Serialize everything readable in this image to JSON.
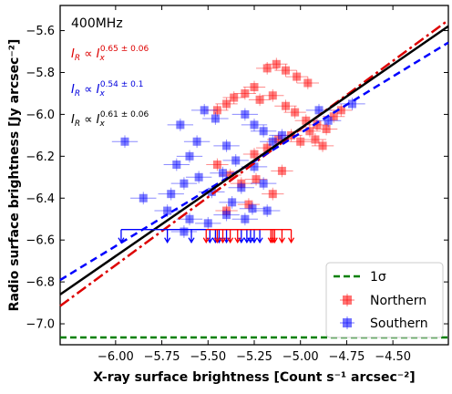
{
  "chart_data": {
    "type": "scatter",
    "xlabel": "X-ray surface brightness [Count s⁻¹ arcsec⁻²]",
    "ylabel": "Radio surface brightness [Jy arcsec⁻²]",
    "xlim": [
      -6.3,
      -4.2
    ],
    "ylim": [
      -7.1,
      -5.48
    ],
    "xticks": [
      -6.0,
      -5.75,
      -5.5,
      -5.25,
      -5.0,
      -4.75,
      -4.5
    ],
    "xtick_labels": [
      "−6.00",
      "−5.75",
      "−5.50",
      "−5.25",
      "−5.00",
      "−4.75",
      "−4.50"
    ],
    "yticks": [
      -7.0,
      -6.8,
      -6.6,
      -6.4,
      -6.2,
      -6.0,
      -5.8,
      -5.6
    ],
    "ytick_labels": [
      "−7.0",
      "−6.8",
      "−6.6",
      "−6.4",
      "−6.2",
      "−6.0",
      "−5.8",
      "−5.6"
    ],
    "annotations": {
      "frequency": "400MHz",
      "northern_fit": {
        "base": "I",
        "sub": "R",
        "rel": " ∝ ",
        "base2": "I",
        "sub2": "x",
        "sup": "0.65 ± 0.06",
        "color": "#dd0000"
      },
      "southern_fit": {
        "base": "I",
        "sub": "R",
        "rel": " ∝ ",
        "base2": "I",
        "sub2": "x",
        "sup": "0.54 ± 0.1",
        "color": "#0000dd"
      },
      "combined_fit": {
        "base": "I",
        "sub": "R",
        "rel": " ∝ ",
        "base2": "I",
        "sub2": "x",
        "sup": "0.61 ± 0.06",
        "color": "#000000"
      }
    },
    "legend": {
      "placement": "lower-right",
      "entries": [
        {
          "label": "1σ",
          "color": "#008000",
          "style": "dashed-line"
        },
        {
          "label": "Northern",
          "color": "#ff0000",
          "style": "marker"
        },
        {
          "label": "Southern",
          "color": "#0000ff",
          "style": "marker"
        }
      ]
    },
    "sigma_level": -7.065,
    "fits": [
      {
        "name": "northern",
        "color": "#dd0000",
        "dash": "dashdot",
        "slope": 0.65,
        "intercept": -2.82
      },
      {
        "name": "southern",
        "color": "#0000ff",
        "dash": "dashed",
        "slope": 0.54,
        "intercept": -3.389
      },
      {
        "name": "combined",
        "color": "#000000",
        "dash": "solid",
        "slope": 0.61,
        "intercept": -3.017
      }
    ],
    "upper_limit_level": -6.55,
    "upper_limits_blue": [
      -5.97,
      -5.72,
      -5.59,
      -5.49,
      -5.46,
      -5.44,
      -5.4,
      -5.32,
      -5.29,
      -5.27,
      -5.25,
      -5.22
    ],
    "upper_limits_red": [
      -5.51,
      -5.45,
      -5.42,
      -5.38,
      -5.34,
      -5.16,
      -5.15,
      -5.14,
      -5.1,
      -5.05
    ],
    "series": [
      {
        "name": "Northern",
        "color": "#ff0000",
        "x_err": 0.06,
        "y_err": 0.03,
        "points": [
          [
            -5.18,
            -5.78
          ],
          [
            -5.13,
            -5.76
          ],
          [
            -5.08,
            -5.79
          ],
          [
            -5.02,
            -5.82
          ],
          [
            -4.96,
            -5.85
          ],
          [
            -5.25,
            -5.87
          ],
          [
            -5.3,
            -5.9
          ],
          [
            -5.36,
            -5.92
          ],
          [
            -5.4,
            -5.95
          ],
          [
            -5.45,
            -5.98
          ],
          [
            -5.22,
            -5.93
          ],
          [
            -5.15,
            -5.91
          ],
          [
            -5.08,
            -5.96
          ],
          [
            -5.03,
            -5.99
          ],
          [
            -4.97,
            -6.03
          ],
          [
            -4.91,
            -6.05
          ],
          [
            -4.86,
            -6.07
          ],
          [
            -5.05,
            -6.1
          ],
          [
            -5.0,
            -6.13
          ],
          [
            -4.95,
            -6.08
          ],
          [
            -5.12,
            -6.12
          ],
          [
            -5.18,
            -6.16
          ],
          [
            -5.25,
            -6.19
          ],
          [
            -4.92,
            -6.12
          ],
          [
            -4.88,
            -6.15
          ],
          [
            -5.45,
            -6.24
          ],
          [
            -5.38,
            -6.29
          ],
          [
            -5.32,
            -6.33
          ],
          [
            -5.24,
            -6.31
          ],
          [
            -5.1,
            -6.27
          ],
          [
            -5.15,
            -6.38
          ],
          [
            -5.28,
            -6.43
          ],
          [
            -5.4,
            -6.46
          ],
          [
            -4.82,
            -6.01
          ],
          [
            -4.78,
            -5.98
          ]
        ]
      },
      {
        "name": "Southern",
        "color": "#0000ff",
        "x_err": 0.07,
        "y_err": 0.03,
        "points": [
          [
            -5.52,
            -5.98
          ],
          [
            -5.46,
            -6.02
          ],
          [
            -5.3,
            -6.0
          ],
          [
            -5.25,
            -6.05
          ],
          [
            -5.2,
            -6.08
          ],
          [
            -5.15,
            -6.13
          ],
          [
            -5.4,
            -6.15
          ],
          [
            -5.56,
            -6.13
          ],
          [
            -5.95,
            -6.13
          ],
          [
            -5.6,
            -6.2
          ],
          [
            -5.67,
            -6.24
          ],
          [
            -5.35,
            -6.22
          ],
          [
            -5.1,
            -6.1
          ],
          [
            -5.42,
            -6.28
          ],
          [
            -5.55,
            -6.3
          ],
          [
            -5.63,
            -6.33
          ],
          [
            -5.32,
            -6.35
          ],
          [
            -5.2,
            -6.33
          ],
          [
            -5.7,
            -6.38
          ],
          [
            -5.85,
            -6.4
          ],
          [
            -5.48,
            -6.37
          ],
          [
            -5.37,
            -6.42
          ],
          [
            -5.26,
            -6.45
          ],
          [
            -5.72,
            -6.46
          ],
          [
            -5.6,
            -6.5
          ],
          [
            -5.5,
            -6.52
          ],
          [
            -5.4,
            -6.48
          ],
          [
            -5.3,
            -6.5
          ],
          [
            -5.63,
            -6.56
          ],
          [
            -5.18,
            -6.46
          ],
          [
            -4.9,
            -5.98
          ],
          [
            -4.85,
            -6.03
          ],
          [
            -4.72,
            -5.95
          ],
          [
            -5.65,
            -6.05
          ],
          [
            -5.25,
            -6.25
          ]
        ]
      }
    ]
  }
}
